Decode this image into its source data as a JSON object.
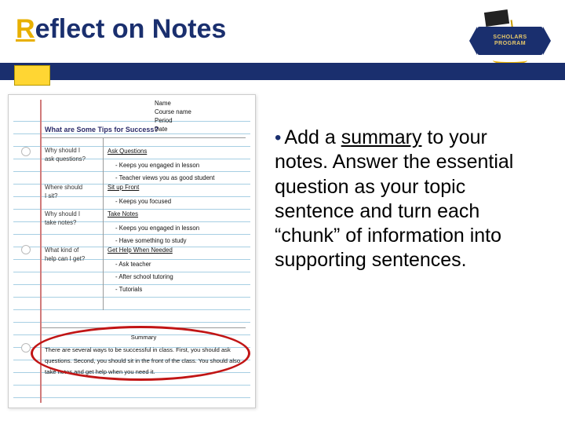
{
  "colors": {
    "primary": "#1a2f6e",
    "accent": "#e8b000",
    "highlight_ring": "#c11515",
    "rule_line": "#a7cfe3",
    "margin_line": "#d07a7a",
    "background": "#ffffff"
  },
  "title": {
    "emphasized_letter": "R",
    "rest": "eflect on Notes"
  },
  "logo": {
    "line1": "SCHOLARS",
    "line2": "PROGRAM"
  },
  "paper": {
    "meta": {
      "name": "Name",
      "course": "Course name",
      "period": "Period",
      "date": "Date"
    },
    "main_question": "What are Some Tips for Success?",
    "cues": {
      "c1_l1": "Why should I",
      "c1_l2": "ask questions?",
      "c2_l1": "Where should",
      "c2_l2": "I sit?",
      "c3_l1": "Why should I",
      "c3_l2": "take notes?",
      "c4_l1": "What kind of",
      "c4_l2": "help can I get?"
    },
    "notes": {
      "n1_header": "Ask Questions",
      "n1_i1": "Keeps you engaged in lesson",
      "n1_i2": "Teacher views you as good student",
      "n2_header": "Sit up Front",
      "n2_i1": "Keeps you focused",
      "n3_header": "Take Notes",
      "n3_i1": "Keeps you engaged in lesson",
      "n3_i2": "Have something to study",
      "n4_header": "Get Help When Needed",
      "n4_i1": "Ask teacher",
      "n4_i2": "After school tutoring",
      "n4_i3": "Tutorials"
    },
    "summary": {
      "heading": "Summary",
      "text": "There are several ways to be successful in class. First, you should ask questions. Second, you should sit in the front of the class. You should also take notes and get help when you need it."
    }
  },
  "bullet": {
    "pre": "Add a ",
    "underlined": "summary",
    "post": " to your notes.  Answer the essential question as your topic sentence and turn each “chunk” of information into supporting sentences."
  }
}
